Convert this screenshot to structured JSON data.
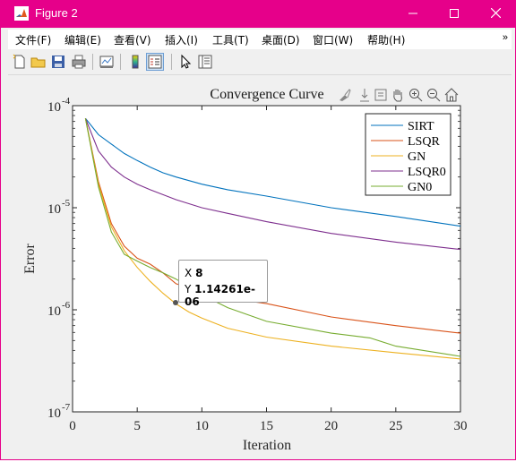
{
  "window": {
    "title": "Figure 2",
    "titlebar_color": "#e6008a",
    "controls": [
      "minimize",
      "maximize",
      "close"
    ]
  },
  "menubar": {
    "items": [
      "文件(F)",
      "编辑(E)",
      "查看(V)",
      "插入(I)",
      "工具(T)",
      "桌面(D)",
      "窗口(W)",
      "帮助(H)"
    ],
    "overflow_icon": "chevron-double-icon"
  },
  "toolbar": {
    "buttons": [
      "new-figure-icon",
      "open-icon",
      "save-icon",
      "print-icon",
      "link-plot-icon",
      "colorbar-icon",
      "legend-icon",
      "pointer-icon",
      "property-inspector-icon"
    ],
    "pressed": "legend-icon"
  },
  "axes_toolbar": {
    "buttons": [
      "brush-icon",
      "data-tips-icon",
      "pan-icon",
      "zoom-in-icon",
      "zoom-out-icon",
      "home-icon"
    ]
  },
  "chart_data": {
    "type": "line",
    "title": "Convergence Curve",
    "xlabel": "Iteration",
    "ylabel": "Error",
    "xlim": [
      0,
      30
    ],
    "xticks": [
      0,
      5,
      10,
      15,
      20,
      25,
      30
    ],
    "ylim": [
      1e-07,
      0.0001
    ],
    "yscale": "log",
    "yticks": [
      {
        "value": 0.0001,
        "base": "10",
        "exp": "-4"
      },
      {
        "value": 1e-05,
        "base": "10",
        "exp": "-5"
      },
      {
        "value": 1e-06,
        "base": "10",
        "exp": "-6"
      },
      {
        "value": 1e-07,
        "base": "10",
        "exp": "-7"
      }
    ],
    "grid": false,
    "legend_position": "top-right",
    "series": [
      {
        "name": "SIRT",
        "color": "#0072bd",
        "x": [
          1,
          2,
          3,
          4,
          5,
          6,
          7,
          8,
          10,
          12,
          15,
          20,
          25,
          30
        ],
        "y": [
          7.5e-05,
          5.2e-05,
          4.2e-05,
          3.4e-05,
          2.9e-05,
          2.5e-05,
          2.2e-05,
          2e-05,
          1.7e-05,
          1.5e-05,
          1.3e-05,
          1e-05,
          8.2e-06,
          6.6e-06
        ]
      },
      {
        "name": "LSQR",
        "color": "#d95319",
        "x": [
          1,
          2,
          3,
          4,
          5,
          6,
          7,
          8,
          10,
          12,
          15,
          20,
          25,
          30
        ],
        "y": [
          7.5e-05,
          1.8e-05,
          7e-06,
          4.2e-06,
          3.2e-06,
          2.8e-06,
          2.3e-06,
          1.8e-06,
          1.5e-06,
          1.3e-06,
          1.15e-06,
          8.5e-07,
          7e-07,
          5.9e-07
        ]
      },
      {
        "name": "GN",
        "color": "#edb120",
        "x": [
          1,
          2,
          3,
          4,
          5,
          6,
          7,
          8,
          9,
          10,
          12,
          15,
          20,
          25,
          30
        ],
        "y": [
          7.5e-05,
          1.7e-05,
          6.5e-06,
          3.8e-06,
          2.6e-06,
          1.9e-06,
          1.45e-06,
          1.14261e-06,
          9.5e-07,
          8.3e-07,
          6.6e-07,
          5.4e-07,
          4.4e-07,
          3.8e-07,
          3.3e-07
        ]
      },
      {
        "name": "LSQR0",
        "color": "#7e2f8e",
        "x": [
          1,
          2,
          3,
          4,
          5,
          6,
          8,
          10,
          12,
          15,
          20,
          25,
          30
        ],
        "y": [
          7.5e-05,
          3.6e-05,
          2.5e-05,
          2e-05,
          1.7e-05,
          1.5e-05,
          1.2e-05,
          1e-05,
          8.8e-06,
          7.3e-06,
          5.6e-06,
          4.6e-06,
          3.9e-06
        ]
      },
      {
        "name": "GN0",
        "color": "#77ac30",
        "x": [
          1,
          2,
          3,
          4,
          5,
          6,
          7,
          8,
          10,
          12,
          15,
          20,
          23,
          25,
          30
        ],
        "y": [
          7.5e-05,
          1.6e-05,
          5.8e-06,
          3.5e-06,
          3e-06,
          2.6e-06,
          2.3e-06,
          2e-06,
          1.4e-06,
          1.05e-06,
          7.7e-07,
          5.9e-07,
          5.3e-07,
          4.4e-07,
          3.5e-07
        ]
      }
    ],
    "datatip": {
      "x_label": "X",
      "x_value": "8",
      "y_label": "Y",
      "y_value": "1.14261e-06"
    }
  }
}
